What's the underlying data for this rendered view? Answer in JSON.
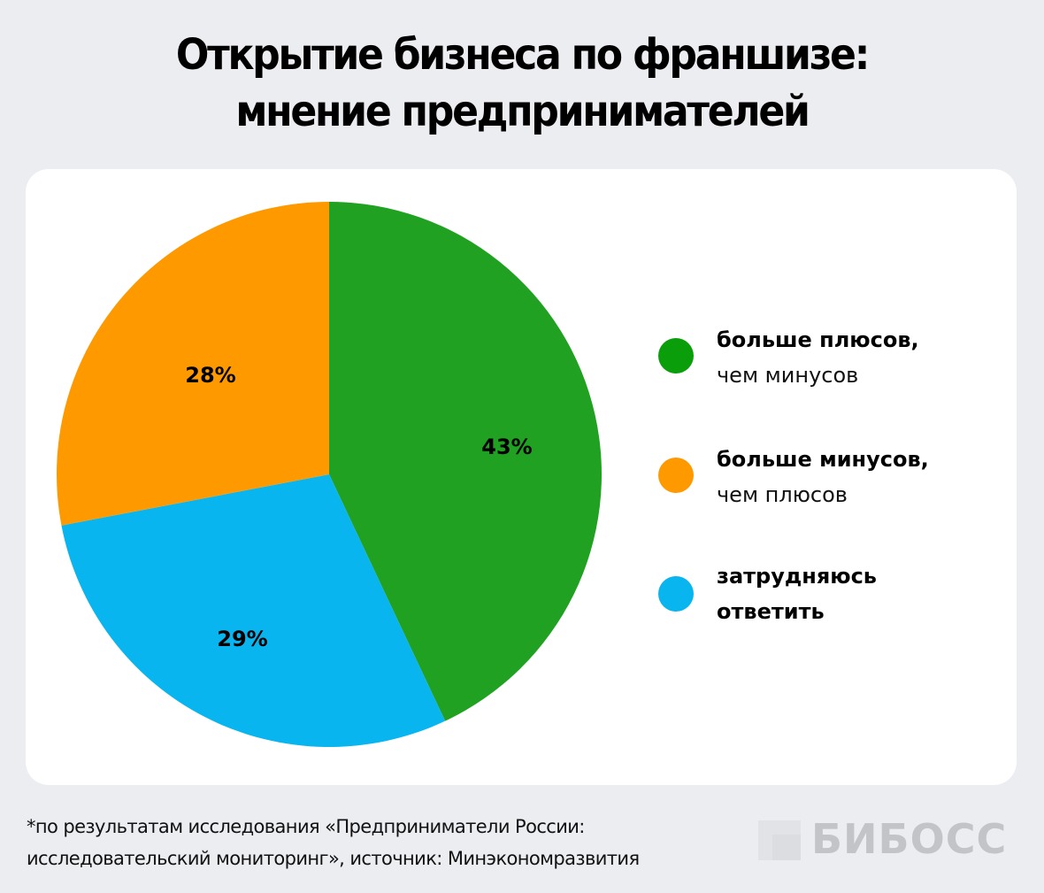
{
  "title": {
    "line1": "Открытие бизнеса по франшизе:",
    "line2": "мнение предпринимателей"
  },
  "legend": [
    {
      "bold": "больше плюсов,",
      "normal": "чем минусов",
      "color": "#0A9E0A"
    },
    {
      "bold": "больше минусов,",
      "normal": "чем плюсов",
      "color": "#FF9900"
    },
    {
      "bold": "затрудняюсь",
      "bold2": "ответить",
      "color": "#09B5EE"
    }
  ],
  "footnote": {
    "line1": "*по результатам исследования «Предприниматели России:",
    "line2": "исследовательский мониторинг», источник: Минэкономразвития"
  },
  "logo": {
    "text": "БИБОСС"
  },
  "colors": {
    "background": "#ECEDF1",
    "card": "#FFFFFF",
    "green": "#21A121",
    "orange": "#FF9900",
    "blue": "#09B5EE"
  },
  "chart_data": {
    "type": "pie",
    "title": "Открытие бизнеса по франшизе: мнение предпринимателей",
    "categories": [
      "больше плюсов, чем минусов",
      "затрудняюсь ответить",
      "больше минусов, чем плюсов"
    ],
    "values": [
      43,
      29,
      28
    ],
    "labels": [
      "43%",
      "29%",
      "28%"
    ],
    "colors": [
      "#21A121",
      "#09B5EE",
      "#FF9900"
    ],
    "start_angle": "12 o'clock, clockwise",
    "legend_position": "right",
    "unit": "%"
  }
}
